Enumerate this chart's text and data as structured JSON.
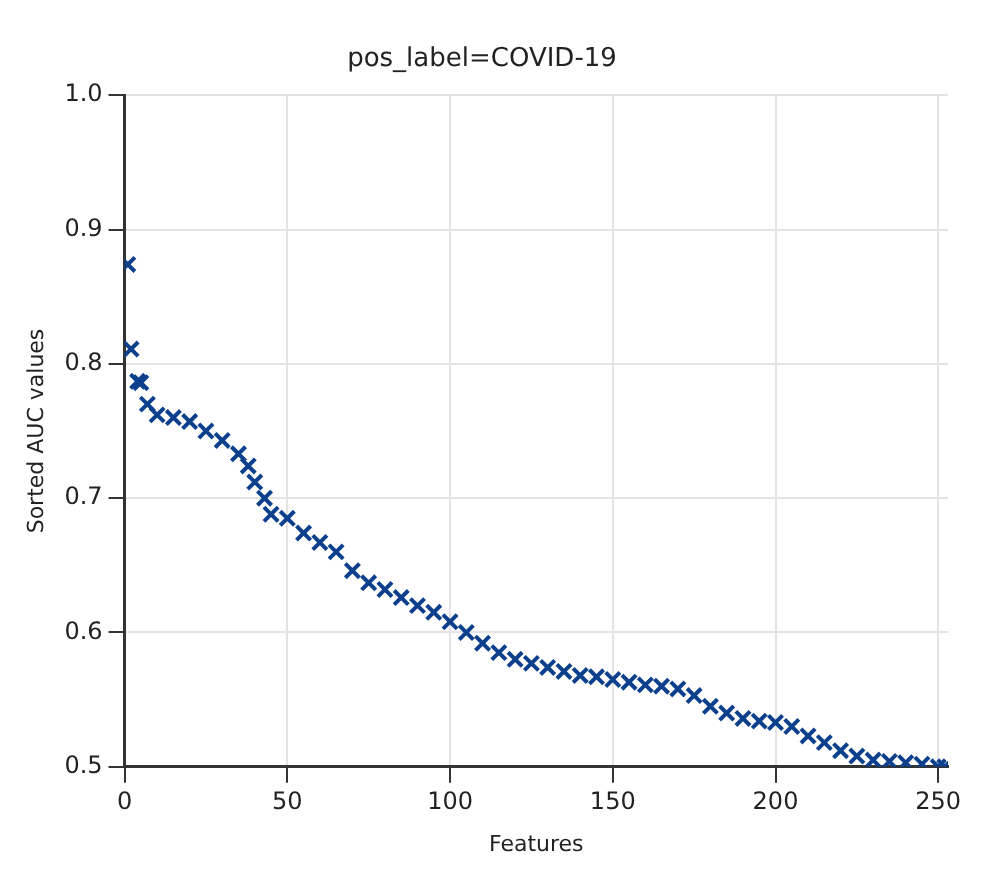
{
  "chart_data": {
    "type": "scatter",
    "title": "pos_label=COVID-19",
    "xlabel": "Features",
    "ylabel": "Sorted AUC values",
    "x": [
      1,
      2,
      4,
      5,
      7,
      10,
      15,
      20,
      25,
      30,
      35,
      38,
      40,
      43,
      45,
      50,
      55,
      60,
      65,
      70,
      75,
      80,
      85,
      90,
      95,
      100,
      105,
      110,
      115,
      120,
      125,
      130,
      135,
      140,
      145,
      150,
      155,
      160,
      165,
      170,
      175,
      180,
      185,
      190,
      195,
      200,
      205,
      210,
      215,
      220,
      225,
      230,
      235,
      240,
      245,
      250,
      252
    ],
    "series": [
      {
        "color": "#0d408c",
        "values": [
          0.874,
          0.811,
          0.787,
          0.786,
          0.77,
          0.762,
          0.76,
          0.757,
          0.75,
          0.743,
          0.733,
          0.724,
          0.712,
          0.7,
          0.688,
          0.685,
          0.674,
          0.667,
          0.66,
          0.646,
          0.637,
          0.632,
          0.626,
          0.62,
          0.615,
          0.608,
          0.6,
          0.592,
          0.585,
          0.58,
          0.577,
          0.574,
          0.571,
          0.568,
          0.567,
          0.565,
          0.563,
          0.561,
          0.56,
          0.558,
          0.553,
          0.545,
          0.54,
          0.536,
          0.534,
          0.533,
          0.53,
          0.523,
          0.518,
          0.512,
          0.508,
          0.505,
          0.504,
          0.503,
          0.502,
          0.5,
          0.5
        ]
      }
    ],
    "xlim": [
      0,
      253
    ],
    "ylim": [
      0.5,
      1.0
    ],
    "xticks": [
      0,
      50,
      100,
      150,
      200,
      250
    ],
    "yticks": [
      {
        "value": 0.5,
        "label": "0.5"
      },
      {
        "value": 0.6,
        "label": "0.6"
      },
      {
        "value": 0.7,
        "label": "0.7"
      },
      {
        "value": 0.8,
        "label": "0.8"
      },
      {
        "value": 0.9,
        "label": "0.9"
      },
      {
        "value": 1.0,
        "label": "1.0"
      }
    ],
    "grid": true,
    "marker": "cross"
  }
}
